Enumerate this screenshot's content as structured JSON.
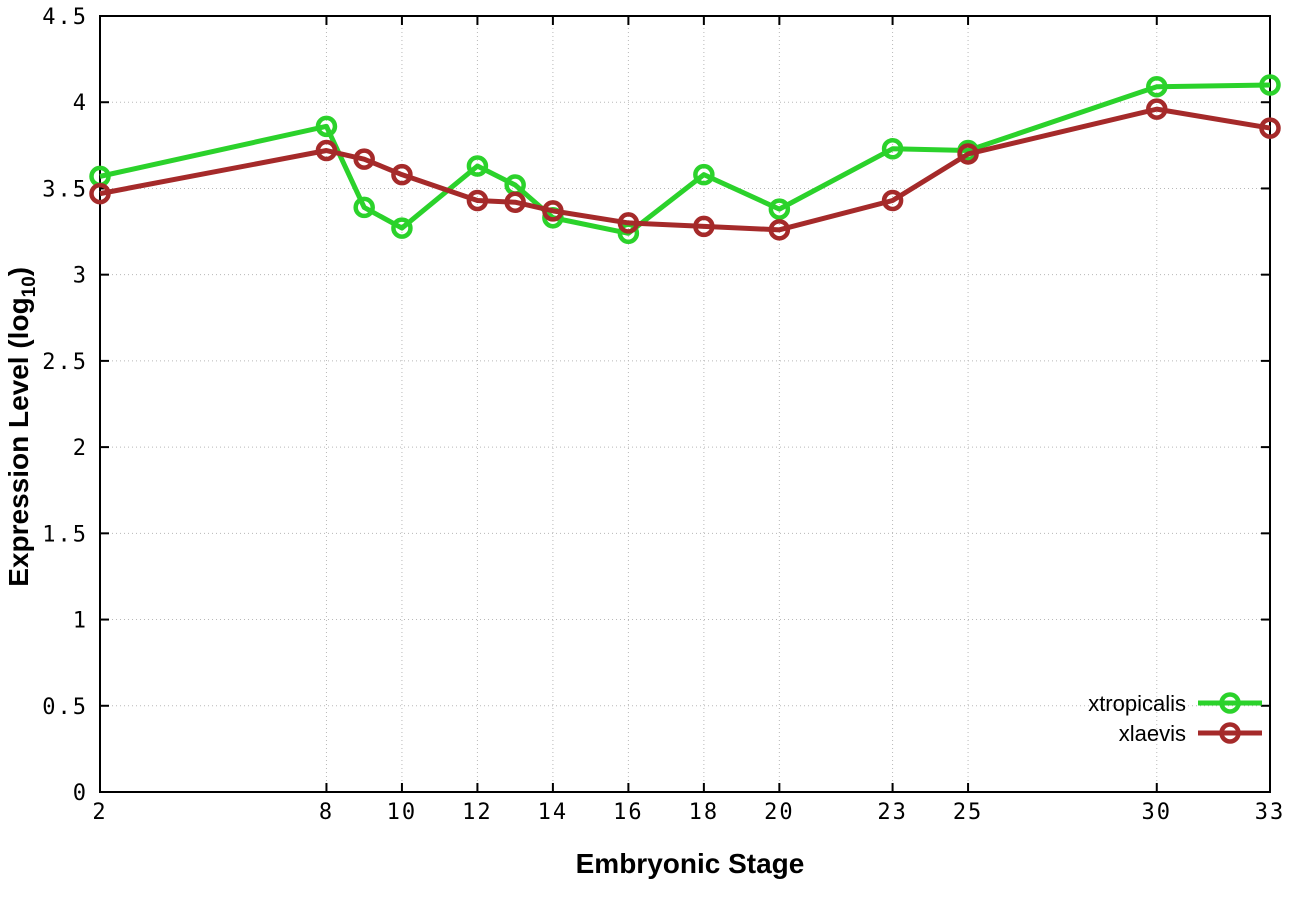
{
  "chart_data": {
    "type": "line",
    "title": "",
    "xlabel": "Embryonic Stage",
    "ylabel": "Expression Level (log10)",
    "ylabel_parts": {
      "prefix": "Expression Level (log",
      "subscript": "10",
      "suffix": ")"
    },
    "x": [
      2,
      8,
      9,
      10,
      12,
      13,
      14,
      16,
      18,
      20,
      23,
      25,
      30,
      33
    ],
    "series": [
      {
        "name": "xtropicalis",
        "color": "#2bd22b",
        "marker": "open-circle",
        "values": [
          3.57,
          3.86,
          3.39,
          3.27,
          3.63,
          3.52,
          3.33,
          3.24,
          3.58,
          3.38,
          3.73,
          3.72,
          4.09,
          4.1
        ]
      },
      {
        "name": "xlaevis",
        "color": "#a52a2a",
        "marker": "open-circle",
        "values": [
          3.47,
          3.72,
          3.67,
          3.58,
          3.43,
          3.42,
          3.37,
          3.3,
          3.28,
          3.26,
          3.43,
          3.7,
          3.96,
          3.85
        ]
      }
    ],
    "xticks": {
      "values": [
        2,
        8,
        10,
        12,
        14,
        16,
        18,
        20,
        23,
        25,
        30,
        33
      ],
      "labels": [
        "2",
        "8",
        "10",
        "12",
        "14",
        "16",
        "18",
        "20",
        "23",
        "25",
        "30",
        "33"
      ]
    },
    "yticks": {
      "values": [
        0,
        0.5,
        1,
        1.5,
        2,
        2.5,
        3,
        3.5,
        4,
        4.5
      ],
      "labels": [
        "0",
        "0.5",
        "1",
        "1.5",
        "2",
        "2.5",
        "3",
        "3.5",
        "4",
        "4.5"
      ]
    },
    "xlim": [
      2,
      33
    ],
    "ylim": [
      0,
      4.5
    ],
    "grid": true,
    "legend_position": "bottom-right",
    "background_color": "#ffffff",
    "grid_color": "#b8b8b8",
    "axis_color": "#000000"
  }
}
